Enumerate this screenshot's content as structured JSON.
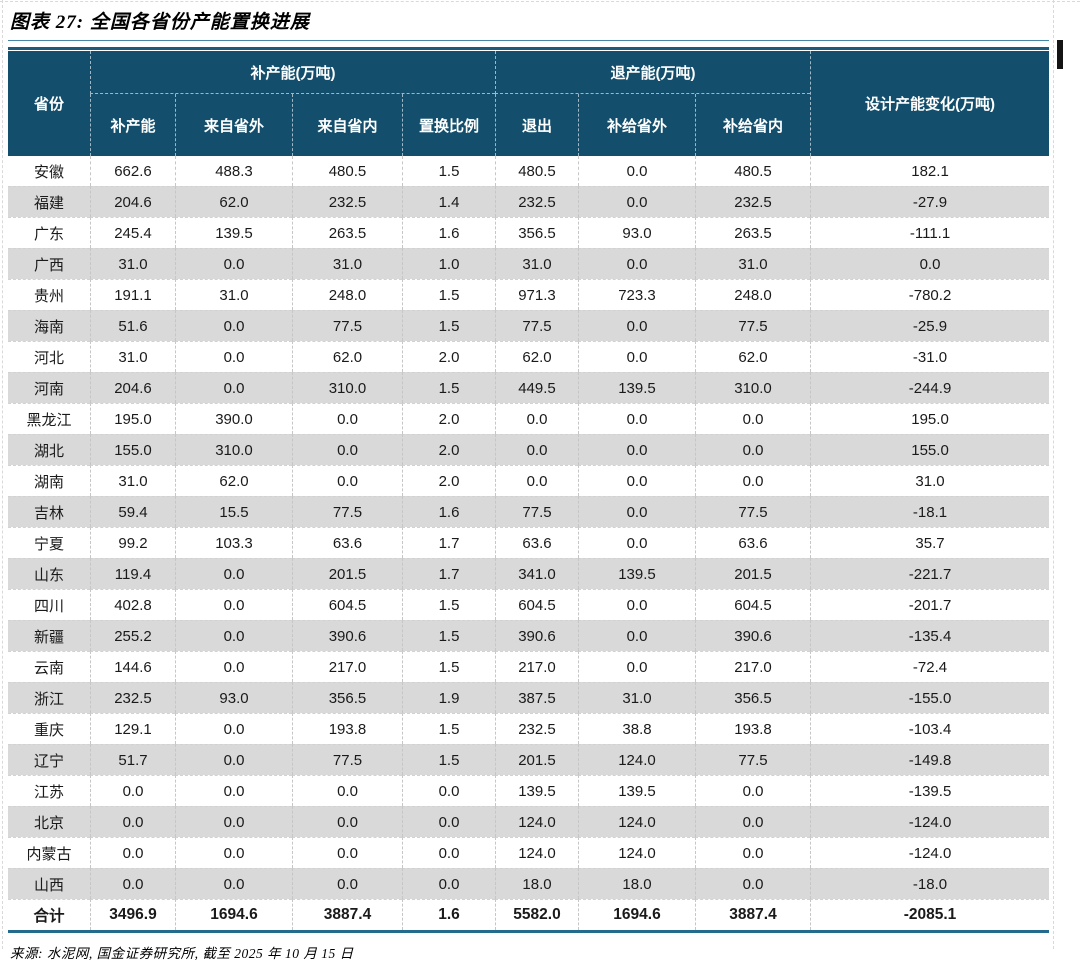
{
  "page": {
    "title": "图表 27:  全国各省份产能置换进展",
    "source_note": "来源: 水泥网, 国金证券研究所, 截至 2025 年 10 月 15 日"
  },
  "colors": {
    "header_bg": "#134f6c",
    "stripe": "#d9d9d9",
    "title_rule": "#1d5a7c",
    "bottom_rule": "#246b8e"
  },
  "chart_data": {
    "type": "table",
    "headers": {
      "province": "省份",
      "group_add": "补产能(万吨)",
      "group_retire": "退产能(万吨)",
      "design_change": "设计产能变化(万吨)",
      "sub": [
        "补产能",
        "来自省外",
        "来自省内",
        "置换比例",
        "退出",
        "补给省外",
        "补给省内"
      ]
    },
    "rows": [
      {
        "province": "安徽",
        "values": [
          "662.6",
          "488.3",
          "480.5",
          "1.5",
          "480.5",
          "0.0",
          "480.5",
          "182.1"
        ]
      },
      {
        "province": "福建",
        "values": [
          "204.6",
          "62.0",
          "232.5",
          "1.4",
          "232.5",
          "0.0",
          "232.5",
          "-27.9"
        ]
      },
      {
        "province": "广东",
        "values": [
          "245.4",
          "139.5",
          "263.5",
          "1.6",
          "356.5",
          "93.0",
          "263.5",
          "-111.1"
        ]
      },
      {
        "province": "广西",
        "values": [
          "31.0",
          "0.0",
          "31.0",
          "1.0",
          "31.0",
          "0.0",
          "31.0",
          "0.0"
        ]
      },
      {
        "province": "贵州",
        "values": [
          "191.1",
          "31.0",
          "248.0",
          "1.5",
          "971.3",
          "723.3",
          "248.0",
          "-780.2"
        ]
      },
      {
        "province": "海南",
        "values": [
          "51.6",
          "0.0",
          "77.5",
          "1.5",
          "77.5",
          "0.0",
          "77.5",
          "-25.9"
        ]
      },
      {
        "province": "河北",
        "values": [
          "31.0",
          "0.0",
          "62.0",
          "2.0",
          "62.0",
          "0.0",
          "62.0",
          "-31.0"
        ]
      },
      {
        "province": "河南",
        "values": [
          "204.6",
          "0.0",
          "310.0",
          "1.5",
          "449.5",
          "139.5",
          "310.0",
          "-244.9"
        ]
      },
      {
        "province": "黑龙江",
        "values": [
          "195.0",
          "390.0",
          "0.0",
          "2.0",
          "0.0",
          "0.0",
          "0.0",
          "195.0"
        ]
      },
      {
        "province": "湖北",
        "values": [
          "155.0",
          "310.0",
          "0.0",
          "2.0",
          "0.0",
          "0.0",
          "0.0",
          "155.0"
        ]
      },
      {
        "province": "湖南",
        "values": [
          "31.0",
          "62.0",
          "0.0",
          "2.0",
          "0.0",
          "0.0",
          "0.0",
          "31.0"
        ]
      },
      {
        "province": "吉林",
        "values": [
          "59.4",
          "15.5",
          "77.5",
          "1.6",
          "77.5",
          "0.0",
          "77.5",
          "-18.1"
        ]
      },
      {
        "province": "宁夏",
        "values": [
          "99.2",
          "103.3",
          "63.6",
          "1.7",
          "63.6",
          "0.0",
          "63.6",
          "35.7"
        ]
      },
      {
        "province": "山东",
        "values": [
          "119.4",
          "0.0",
          "201.5",
          "1.7",
          "341.0",
          "139.5",
          "201.5",
          "-221.7"
        ]
      },
      {
        "province": "四川",
        "values": [
          "402.8",
          "0.0",
          "604.5",
          "1.5",
          "604.5",
          "0.0",
          "604.5",
          "-201.7"
        ]
      },
      {
        "province": "新疆",
        "values": [
          "255.2",
          "0.0",
          "390.6",
          "1.5",
          "390.6",
          "0.0",
          "390.6",
          "-135.4"
        ]
      },
      {
        "province": "云南",
        "values": [
          "144.6",
          "0.0",
          "217.0",
          "1.5",
          "217.0",
          "0.0",
          "217.0",
          "-72.4"
        ]
      },
      {
        "province": "浙江",
        "values": [
          "232.5",
          "93.0",
          "356.5",
          "1.9",
          "387.5",
          "31.0",
          "356.5",
          "-155.0"
        ]
      },
      {
        "province": "重庆",
        "values": [
          "129.1",
          "0.0",
          "193.8",
          "1.5",
          "232.5",
          "38.8",
          "193.8",
          "-103.4"
        ]
      },
      {
        "province": "辽宁",
        "values": [
          "51.7",
          "0.0",
          "77.5",
          "1.5",
          "201.5",
          "124.0",
          "77.5",
          "-149.8"
        ]
      },
      {
        "province": "江苏",
        "values": [
          "0.0",
          "0.0",
          "0.0",
          "0.0",
          "139.5",
          "139.5",
          "0.0",
          "-139.5"
        ]
      },
      {
        "province": "北京",
        "values": [
          "0.0",
          "0.0",
          "0.0",
          "0.0",
          "124.0",
          "124.0",
          "0.0",
          "-124.0"
        ]
      },
      {
        "province": "内蒙古",
        "values": [
          "0.0",
          "0.0",
          "0.0",
          "0.0",
          "124.0",
          "124.0",
          "0.0",
          "-124.0"
        ]
      },
      {
        "province": "山西",
        "values": [
          "0.0",
          "0.0",
          "0.0",
          "0.0",
          "18.0",
          "18.0",
          "0.0",
          "-18.0"
        ]
      }
    ],
    "total_row": {
      "province": "合计",
      "values": [
        "3496.9",
        "1694.6",
        "3887.4",
        "1.6",
        "5582.0",
        "1694.6",
        "3887.4",
        "-2085.1"
      ]
    }
  }
}
